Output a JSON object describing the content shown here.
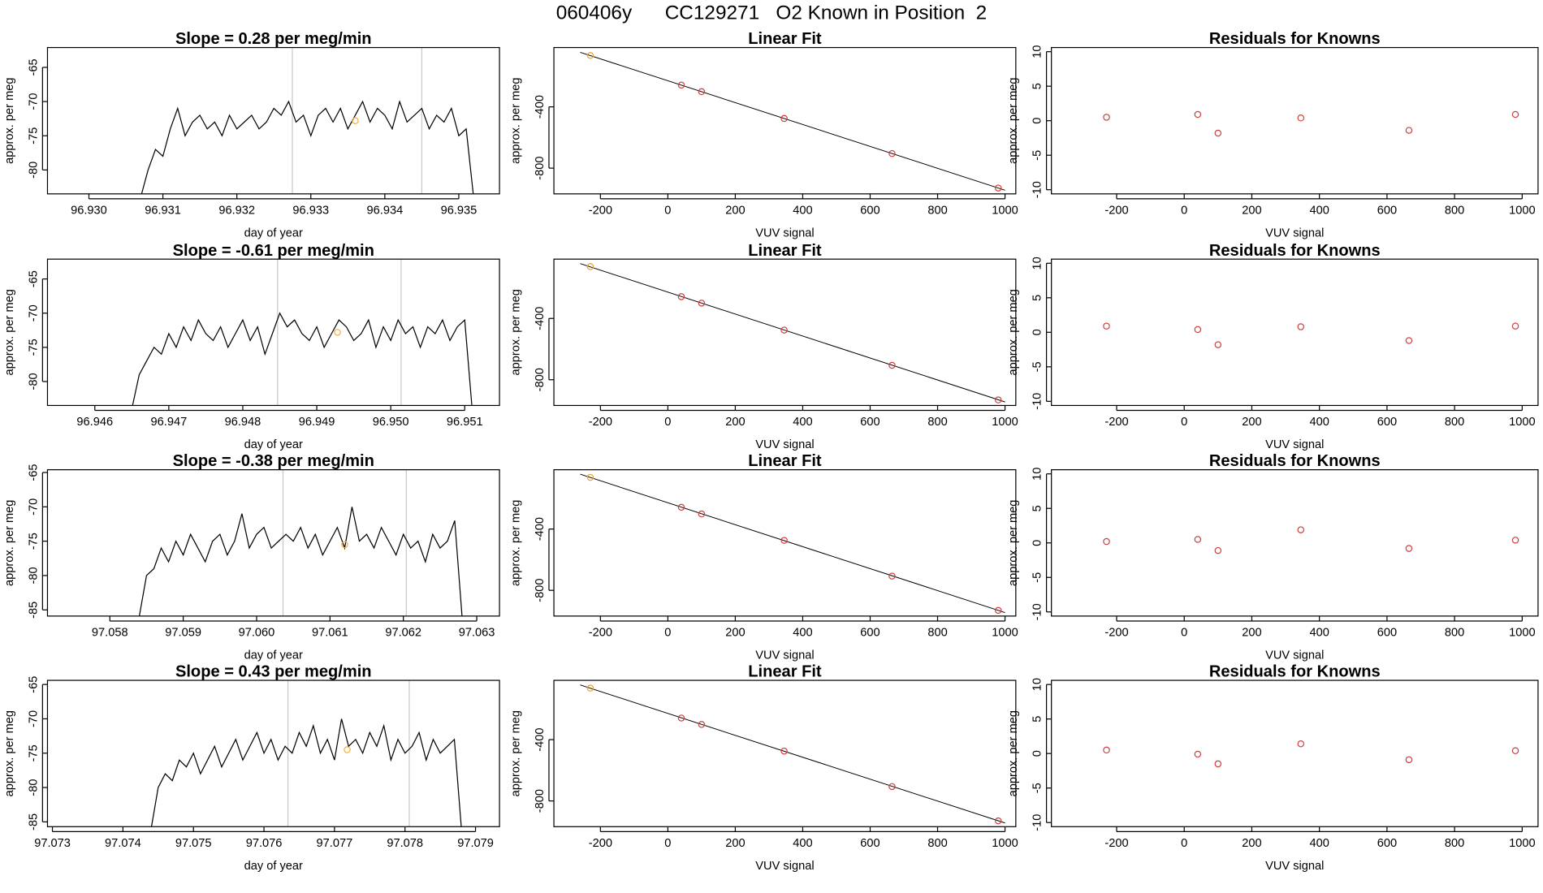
{
  "title": "060406y      CC129271   O2 Known in Position  2",
  "chart_data": [
    {
      "type": "line",
      "title": "Slope =  0.28  per meg/min",
      "xlabel": "day of year",
      "ylabel": "approx. per meg",
      "color": "#000000",
      "x": [
        96.9307,
        96.9308,
        96.9309,
        96.931,
        96.9311,
        96.9312,
        96.9313,
        96.9314,
        96.9315,
        96.9316,
        96.9317,
        96.9318,
        96.9319,
        96.932,
        96.9321,
        96.9322,
        96.9323,
        96.9324,
        96.9325,
        96.9326,
        96.9327,
        96.9328,
        96.9329,
        96.933,
        96.9331,
        96.9332,
        96.9333,
        96.9334,
        96.9335,
        96.9336,
        96.9337,
        96.9338,
        96.9339,
        96.934,
        96.9341,
        96.9342,
        96.9343,
        96.9344,
        96.9345,
        96.9346,
        96.9347,
        96.9348,
        96.9349,
        96.935,
        96.9351,
        96.9352
      ],
      "values": [
        -84,
        -80,
        -77,
        -78,
        -74,
        -71,
        -75,
        -73,
        -72,
        -74,
        -73,
        -75,
        -72,
        -74,
        -73,
        -72,
        -74,
        -73,
        -71,
        -72,
        -70,
        -73,
        -72,
        -75,
        -72,
        -71,
        -73,
        -71,
        -74,
        -72,
        -70,
        -73,
        -71,
        -72,
        -74,
        -70,
        -73,
        -72,
        -71,
        -74,
        -72,
        -73,
        -71,
        -75,
        -74,
        -84
      ],
      "vlines": [
        96.93275,
        96.9345
      ],
      "vline_color": "#c8c8c8",
      "highlight": {
        "x": 96.9336,
        "y": -72.8,
        "color": "#f0b040"
      },
      "xlim": [
        96.92944,
        96.93555
      ],
      "ylim": [
        -83.5,
        -62.1
      ],
      "xticks": [
        {
          "value": 96.93,
          "label": "96.930"
        },
        96.931,
        96.932,
        96.933,
        96.934,
        96.935
      ],
      "yticks": [
        -65,
        -70,
        -75,
        -80
      ]
    },
    {
      "type": "scatter",
      "title": "Linear Fit",
      "xlabel": "VUV signal",
      "ylabel": "approx. per meg",
      "x": [
        -230,
        40,
        100,
        345,
        665,
        980
      ],
      "values": [
        -65,
        -258,
        -301,
        -476,
        -705,
        -930
      ],
      "point_colors": [
        "#f0a030",
        "#d04040",
        "#d04040",
        "#d04040",
        "#d04040",
        "#d04040"
      ],
      "fit_line": {
        "x": [
          -260,
          1000
        ],
        "y": [
          -44,
          -944
        ]
      },
      "xlim": [
        -338,
        1032
      ],
      "ylim": [
        -968,
        -13
      ],
      "xticks": [
        -200,
        0,
        200,
        400,
        600,
        800,
        1000
      ],
      "yticks": [
        -400,
        -800
      ]
    },
    {
      "type": "scatter",
      "title": "Residuals for Knowns",
      "xlabel": "VUV signal",
      "ylabel": "approx. per meg",
      "x": [
        -230,
        40,
        100,
        345,
        665,
        980
      ],
      "values": [
        0.5,
        0.9,
        -1.8,
        0.4,
        -1.4,
        0.9
      ],
      "point_colors": [
        "#d04040",
        "#d04040",
        "#d04040",
        "#d04040",
        "#d04040",
        "#d04040"
      ],
      "xlim": [
        -393,
        1047
      ],
      "ylim": [
        -10.6,
        10.6
      ],
      "xticks": [
        -200,
        0,
        200,
        400,
        600,
        800,
        1000
      ],
      "yticks": [
        -10,
        -5,
        0,
        5,
        10
      ]
    },
    {
      "type": "line",
      "title": "Slope =  -0.61  per meg/min",
      "xlabel": "day of year",
      "ylabel": "approx. per meg",
      "color": "#000000",
      "x": [
        96.9465,
        96.9466,
        96.9467,
        96.9468,
        96.9469,
        96.947,
        96.9471,
        96.9472,
        96.9473,
        96.9474,
        96.9475,
        96.9476,
        96.9477,
        96.9478,
        96.9479,
        96.948,
        96.9481,
        96.9482,
        96.9483,
        96.9484,
        96.9485,
        96.9486,
        96.9487,
        96.9488,
        96.9489,
        96.949,
        96.9491,
        96.9492,
        96.9493,
        96.9494,
        96.9495,
        96.9496,
        96.9497,
        96.9498,
        96.9499,
        96.95,
        96.9501,
        96.9502,
        96.9503,
        96.9504,
        96.9505,
        96.9506,
        96.9507,
        96.9508,
        96.9509,
        96.951,
        96.9511
      ],
      "values": [
        -84,
        -79,
        -77,
        -75,
        -76,
        -73,
        -75,
        -72,
        -74,
        -71,
        -73,
        -74,
        -72,
        -75,
        -73,
        -71,
        -74,
        -72,
        -76,
        -73,
        -70,
        -72,
        -71,
        -73,
        -74,
        -72,
        -75,
        -73,
        -71,
        -72,
        -74,
        -73,
        -71,
        -75,
        -72,
        -74,
        -71,
        -73,
        -72,
        -75,
        -72,
        -73,
        -71,
        -74,
        -72,
        -71,
        -84
      ],
      "vlines": [
        96.94847,
        96.95014
      ],
      "vline_color": "#c8c8c8",
      "highlight": {
        "x": 96.94928,
        "y": -72.8,
        "color": "#f0b040"
      },
      "xlim": [
        96.94536,
        96.95147
      ],
      "ylim": [
        -83.5,
        -62.1
      ],
      "xticks": [
        96.946,
        96.947,
        96.948,
        96.949,
        {
          "value": 96.95,
          "label": "96.950"
        },
        96.951
      ],
      "yticks": [
        -65,
        -70,
        -75,
        -80
      ]
    },
    {
      "type": "scatter",
      "title": "Linear Fit",
      "xlabel": "VUV signal",
      "ylabel": "approx. per meg",
      "x": [
        -230,
        40,
        100,
        345,
        665,
        980
      ],
      "values": [
        -62,
        -258,
        -300,
        -476,
        -706,
        -932
      ],
      "point_colors": [
        "#f0a030",
        "#d04040",
        "#d04040",
        "#d04040",
        "#d04040",
        "#d04040"
      ],
      "fit_line": {
        "x": [
          -260,
          1000
        ],
        "y": [
          -42,
          -945
        ]
      },
      "xlim": [
        -338,
        1032
      ],
      "ylim": [
        -968,
        -13
      ],
      "xticks": [
        -200,
        0,
        200,
        400,
        600,
        800,
        1000
      ],
      "yticks": [
        -400,
        -800
      ]
    },
    {
      "type": "scatter",
      "title": "Residuals for Knowns",
      "xlabel": "VUV signal",
      "ylabel": "approx. per meg",
      "x": [
        -230,
        40,
        100,
        345,
        665,
        980
      ],
      "values": [
        0.9,
        0.4,
        -1.8,
        0.8,
        -1.2,
        0.9
      ],
      "point_colors": [
        "#d04040",
        "#d04040",
        "#d04040",
        "#d04040",
        "#d04040",
        "#d04040"
      ],
      "xlim": [
        -393,
        1047
      ],
      "ylim": [
        -10.6,
        10.6
      ],
      "xticks": [
        -200,
        0,
        200,
        400,
        600,
        800,
        1000
      ],
      "yticks": [
        -10,
        -5,
        0,
        5,
        10
      ]
    },
    {
      "type": "line",
      "title": "Slope =  -0.38  per meg/min",
      "xlabel": "day of year",
      "ylabel": "approx. per meg",
      "color": "#000000",
      "x": [
        97.0584,
        97.0585,
        97.0586,
        97.0587,
        97.0588,
        97.0589,
        97.059,
        97.0591,
        97.0592,
        97.0593,
        97.0594,
        97.0595,
        97.0596,
        97.0597,
        97.0598,
        97.0599,
        97.06,
        97.0601,
        97.0602,
        97.0603,
        97.0604,
        97.0605,
        97.0606,
        97.0607,
        97.0608,
        97.0609,
        97.061,
        97.0611,
        97.0612,
        97.0613,
        97.0614,
        97.0615,
        97.0616,
        97.0617,
        97.0618,
        97.0619,
        97.062,
        97.0621,
        97.0622,
        97.0623,
        97.0624,
        97.0625,
        97.0626,
        97.0627,
        97.0628
      ],
      "values": [
        -86,
        -80,
        -79,
        -76,
        -78,
        -75,
        -77,
        -74,
        -76,
        -78,
        -75,
        -74,
        -77,
        -75,
        -71,
        -76,
        -74,
        -73,
        -76,
        -75,
        -74,
        -75,
        -73,
        -76,
        -74,
        -77,
        -75,
        -73,
        -76,
        -70,
        -75,
        -74,
        -76,
        -73,
        -75,
        -77,
        -74,
        -76,
        -75,
        -78,
        -74,
        -76,
        -75,
        -72,
        -86
      ],
      "vlines": [
        97.06036,
        97.06204
      ],
      "vline_color": "#c8c8c8",
      "highlight": {
        "x": 97.0612,
        "y": -75.5,
        "color": "#f0b040"
      },
      "xlim": [
        97.05715,
        97.06331
      ],
      "ylim": [
        -85.9,
        -64.6
      ],
      "xticks": [
        97.058,
        97.059,
        {
          "value": 97.06,
          "label": "97.060"
        },
        97.061,
        97.062,
        97.063
      ],
      "yticks": [
        -65,
        -70,
        -75,
        -80,
        -85
      ]
    },
    {
      "type": "scatter",
      "title": "Linear Fit",
      "xlabel": "VUV signal",
      "ylabel": "approx. per meg",
      "x": [
        -230,
        40,
        100,
        345,
        665,
        980
      ],
      "values": [
        -63,
        -258,
        -302,
        -474,
        -707,
        -931
      ],
      "point_colors": [
        "#f0a030",
        "#d04040",
        "#d04040",
        "#d04040",
        "#d04040",
        "#d04040"
      ],
      "fit_line": {
        "x": [
          -260,
          1000
        ],
        "y": [
          -42,
          -945
        ]
      },
      "xlim": [
        -338,
        1032
      ],
      "ylim": [
        -968,
        -13
      ],
      "xticks": [
        -200,
        0,
        200,
        400,
        600,
        800,
        1000
      ],
      "yticks": [
        -400,
        -800
      ]
    },
    {
      "type": "scatter",
      "title": "Residuals for Knowns",
      "xlabel": "VUV signal",
      "ylabel": "approx. per meg",
      "x": [
        -230,
        40,
        100,
        345,
        665,
        980
      ],
      "values": [
        0.2,
        0.5,
        -1.1,
        1.9,
        -0.8,
        0.4
      ],
      "point_colors": [
        "#d04040",
        "#d04040",
        "#d04040",
        "#d04040",
        "#d04040",
        "#d04040"
      ],
      "xlim": [
        -393,
        1047
      ],
      "ylim": [
        -10.6,
        10.6
      ],
      "xticks": [
        -200,
        0,
        200,
        400,
        600,
        800,
        1000
      ],
      "yticks": [
        -10,
        -5,
        0,
        5,
        10
      ]
    },
    {
      "type": "line",
      "title": "Slope =  0.43  per meg/min",
      "xlabel": "day of year",
      "ylabel": "approx. per meg",
      "color": "#000000",
      "x": [
        97.0744,
        97.0745,
        97.0746,
        97.0747,
        97.0748,
        97.0749,
        97.075,
        97.0751,
        97.0752,
        97.0753,
        97.0754,
        97.0755,
        97.0756,
        97.0757,
        97.0758,
        97.0759,
        97.076,
        97.0761,
        97.0762,
        97.0763,
        97.0764,
        97.0765,
        97.0766,
        97.0767,
        97.0768,
        97.0769,
        97.077,
        97.0771,
        97.0772,
        97.0773,
        97.0774,
        97.0775,
        97.0776,
        97.0777,
        97.0778,
        97.0779,
        97.078,
        97.0781,
        97.0782,
        97.0783,
        97.0784,
        97.0785,
        97.0786,
        97.0787,
        97.0788
      ],
      "values": [
        -86,
        -80,
        -78,
        -79,
        -76,
        -77,
        -75,
        -78,
        -76,
        -74,
        -77,
        -75,
        -73,
        -76,
        -74,
        -72,
        -75,
        -73,
        -76,
        -74,
        -75,
        -72,
        -74,
        -71,
        -75,
        -73,
        -76,
        -70,
        -74,
        -73,
        -75,
        -72,
        -74,
        -71,
        -76,
        -73,
        -75,
        -74,
        -72,
        -76,
        -73,
        -75,
        -74,
        -73,
        -86
      ],
      "vlines": [
        97.07634,
        97.07806
      ],
      "vline_color": "#c8c8c8",
      "highlight": {
        "x": 97.07718,
        "y": -74.5,
        "color": "#f0b040"
      },
      "xlim": [
        97.07293,
        97.07934
      ],
      "ylim": [
        -85.7,
        -64.4
      ],
      "xticks": [
        97.073,
        97.074,
        97.075,
        97.076,
        97.077,
        97.078,
        97.079
      ],
      "yticks": [
        -65,
        -70,
        -75,
        -80,
        -85
      ]
    },
    {
      "type": "scatter",
      "title": "Linear Fit",
      "xlabel": "VUV signal",
      "ylabel": "approx. per meg",
      "x": [
        -230,
        40,
        100,
        345,
        665,
        980
      ],
      "values": [
        -64,
        -259,
        -301,
        -475,
        -706,
        -930
      ],
      "point_colors": [
        "#f0a030",
        "#d04040",
        "#d04040",
        "#d04040",
        "#d04040",
        "#d04040"
      ],
      "fit_line": {
        "x": [
          -260,
          1000
        ],
        "y": [
          -43,
          -944
        ]
      },
      "xlim": [
        -338,
        1032
      ],
      "ylim": [
        -968,
        -13
      ],
      "xticks": [
        -200,
        0,
        200,
        400,
        600,
        800,
        1000
      ],
      "yticks": [
        -400,
        -800
      ]
    },
    {
      "type": "scatter",
      "title": "Residuals for Knowns",
      "xlabel": "VUV signal",
      "ylabel": "approx. per meg",
      "x": [
        -230,
        40,
        100,
        345,
        665,
        980
      ],
      "values": [
        0.5,
        -0.1,
        -1.5,
        1.4,
        -0.9,
        0.4
      ],
      "point_colors": [
        "#d04040",
        "#d04040",
        "#d04040",
        "#d04040",
        "#d04040",
        "#d04040"
      ],
      "xlim": [
        -393,
        1047
      ],
      "ylim": [
        -10.6,
        10.6
      ],
      "xticks": [
        -200,
        0,
        200,
        400,
        600,
        800,
        1000
      ],
      "yticks": [
        -10,
        -5,
        0,
        5,
        10
      ]
    }
  ]
}
